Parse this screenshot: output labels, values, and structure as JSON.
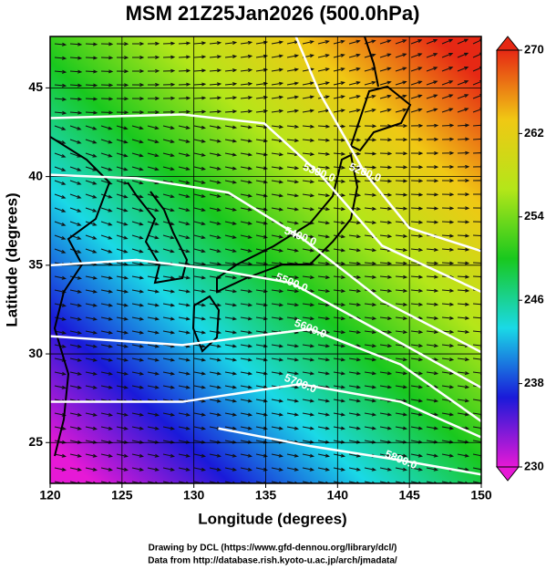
{
  "chart_data": {
    "type": "map",
    "title": "MSM 21Z25Jan2026 (500.0hPa)",
    "x_label": "Longitude (degrees)",
    "y_label": "Latitude  (degrees)",
    "footer": [
      "Drawing by DCL (https://www.gfd-dennou.org/library/dcl/)",
      "Data from http://database.rish.kyoto-u.ac.jp/arch/jmadata/"
    ],
    "xlim": [
      120,
      150
    ],
    "ylim": [
      22.7,
      47.9
    ],
    "xticks": [
      120,
      125,
      130,
      135,
      140,
      145,
      150
    ],
    "yticks": [
      25,
      30,
      35,
      40,
      45
    ],
    "grid": true,
    "colorbar": {
      "clim": [
        230,
        270
      ],
      "ticks": [
        230,
        238,
        246,
        254,
        262,
        270
      ],
      "colormap": [
        "#e619d6",
        "#1a1ad9",
        "#1ad9e6",
        "#19c81e",
        "#b4e619",
        "#f0c814",
        "#e62814"
      ]
    },
    "contours": [
      {
        "label": "5200.0",
        "lon": [
          137.1,
          138.7,
          141.9,
          145.0,
          150.0
        ],
        "lat": [
          47.9,
          44.8,
          40.2,
          37.1,
          35.8
        ]
      },
      {
        "label": "5300.0",
        "lon": [
          120.0,
          129.2,
          134.9,
          138.7,
          143.1,
          150.0
        ],
        "lat": [
          43.3,
          43.5,
          43.0,
          40.2,
          36.1,
          33.5
        ]
      },
      {
        "label": "5400.0",
        "lon": [
          120.0,
          126.0,
          132.4,
          137.4,
          143.1,
          150.0
        ],
        "lat": [
          40.1,
          39.9,
          39.1,
          36.6,
          33.0,
          30.1
        ]
      },
      {
        "label": "5500.0",
        "lon": [
          120.0,
          126.0,
          131.1,
          136.8,
          143.1,
          150.0
        ],
        "lat": [
          35.0,
          35.3,
          34.8,
          34.0,
          31.2,
          28.1
        ]
      },
      {
        "label": "5600.0",
        "lon": [
          120.0,
          129.2,
          138.1,
          144.4,
          150.0
        ],
        "lat": [
          31.0,
          30.5,
          31.4,
          29.4,
          26.2
        ]
      },
      {
        "label": "5700.0",
        "lon": [
          120.0,
          129.2,
          137.4,
          144.4,
          150.0
        ],
        "lat": [
          27.3,
          27.3,
          28.3,
          27.3,
          25.3
        ]
      },
      {
        "label": "5800.0",
        "lon": [
          131.7,
          138.1,
          144.4,
          150.0
        ],
        "lat": [
          25.8,
          24.8,
          24.0,
          23.2
        ]
      }
    ]
  }
}
